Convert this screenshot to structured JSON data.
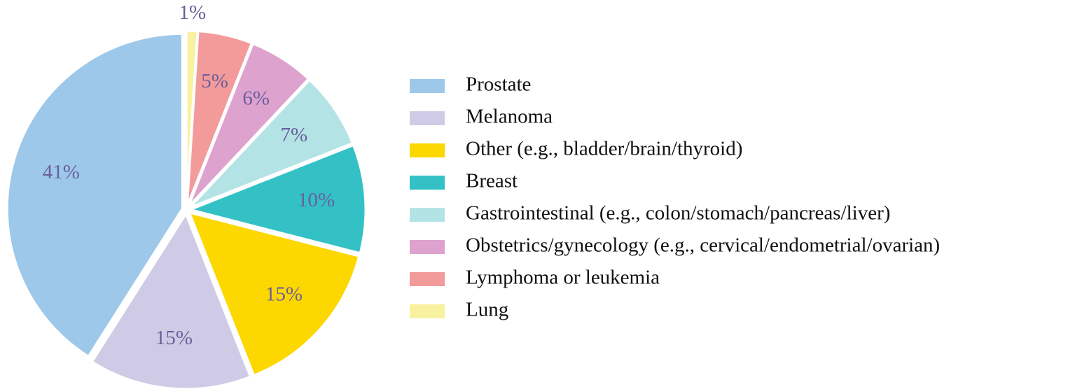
{
  "chart_data": {
    "type": "pie",
    "categories": [
      "Prostate",
      "Melanoma",
      "Other (e.g., bladder/brain/thyroid)",
      "Breast",
      "Gastrointestinal (e.g., colon/stomach/pancreas/liver)",
      "Obstetrics/gynecology (e.g., cervical/endometrial/ovarian)",
      "Lymphoma or leukemia",
      "Lung"
    ],
    "values": [
      41,
      15,
      15,
      10,
      7,
      6,
      5,
      1
    ],
    "value_labels": [
      "41%",
      "15%",
      "15%",
      "10%",
      "7%",
      "6%",
      "5%",
      "1%"
    ],
    "colors": [
      "#9dc8ea",
      "#cfcbe6",
      "#fdd700",
      "#33c1c5",
      "#b4e3e5",
      "#dea2cf",
      "#f39a9a",
      "#f8f1a0"
    ],
    "legend": "right"
  }
}
